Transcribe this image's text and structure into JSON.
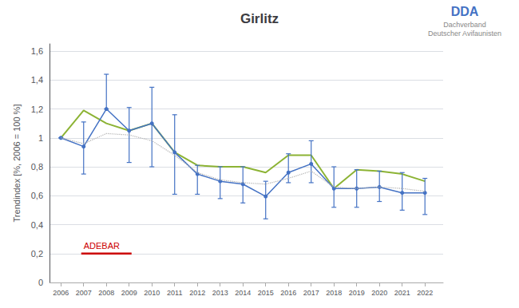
{
  "chart_data": {
    "type": "line",
    "title": "Girlitz",
    "ylabel": "Trendindex [%, 2006 = 100 %]",
    "x": [
      2006,
      2007,
      2008,
      2009,
      2010,
      2011,
      2012,
      2013,
      2014,
      2015,
      2016,
      2017,
      2018,
      2019,
      2020,
      2021,
      2022
    ],
    "xlim": [
      2005.5,
      2022.8
    ],
    "xticks": [
      2006,
      2007,
      2008,
      2009,
      2010,
      2011,
      2012,
      2013,
      2014,
      2015,
      2016,
      2017,
      2018,
      2019,
      2020,
      2021,
      2022
    ],
    "ylim": [
      0,
      1.65
    ],
    "yticks": [
      0,
      {
        "value": 0.2,
        "label": "0,2"
      },
      {
        "value": 0.4,
        "label": "0,4"
      },
      {
        "value": 0.6,
        "label": "0,6"
      },
      {
        "value": 0.8,
        "label": "0,8"
      },
      1,
      {
        "value": 1.2,
        "label": "1,2"
      },
      {
        "value": 1.4,
        "label": "1,4"
      },
      {
        "value": 1.6,
        "label": "1,6"
      }
    ],
    "grid": true,
    "series": [
      {
        "type": "line",
        "color": "#8cb334",
        "values": [
          1.0,
          1.19,
          1.1,
          1.05,
          1.1,
          0.9,
          0.81,
          0.8,
          0.8,
          0.76,
          0.88,
          0.88,
          0.65,
          0.78,
          0.77,
          0.75,
          0.7
        ]
      },
      {
        "type": "line",
        "color": "#b0b0b0",
        "line_style": "dotted",
        "values": [
          1.0,
          0.96,
          1.03,
          1.02,
          0.98,
          0.88,
          0.76,
          0.71,
          0.69,
          0.68,
          0.72,
          0.77,
          0.66,
          0.65,
          0.66,
          0.65,
          0.63
        ]
      },
      {
        "type": "line",
        "color": "#4472C4",
        "marker": "circle",
        "values": [
          1.0,
          0.94,
          1.2,
          1.05,
          1.1,
          0.9,
          0.75,
          0.7,
          0.68,
          0.595,
          0.76,
          0.82,
          0.65,
          0.65,
          0.66,
          0.62,
          0.62
        ],
        "err_low": [
          0.0,
          0.19,
          0.0,
          0.22,
          0.3,
          0.29,
          0.14,
          0.12,
          0.13,
          0.155,
          0.07,
          0.13,
          0.13,
          0.13,
          0.1,
          0.12,
          0.15
        ],
        "err_high": [
          0.0,
          0.17,
          0.24,
          0.16,
          0.25,
          0.26,
          0.06,
          0.1,
          0.12,
          0.105,
          0.13,
          0.16,
          0.15,
          0.13,
          0.11,
          0.14,
          0.1
        ]
      }
    ],
    "annotations": [
      {
        "text": "ADEBAR",
        "x": 2007,
        "x_end": 2009,
        "y": 0.2,
        "color": "#cc0000"
      },
      {
        "text": "DDA",
        "color": "#4472C4"
      },
      {
        "text": "Dachverband",
        "color": "#888888"
      },
      {
        "text": "Deutscher Avifaunisten",
        "color": "#888888"
      }
    ]
  }
}
